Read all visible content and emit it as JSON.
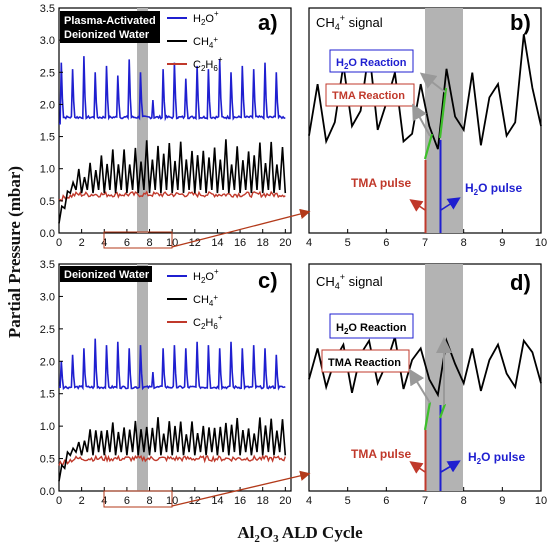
{
  "colors": {
    "h2o": "#1f1fd0",
    "ch4": "#000000",
    "c2h6": "#c0392b",
    "shade": "#b3b3b3",
    "green": "#3dbf2a",
    "grey_arrow": "#999999",
    "connector": "#b33a1a"
  },
  "xlabel": "Al₂O₃ ALD Cycle",
  "ylabel": "Partial Pressure (mbar)",
  "chart_data": [
    {
      "panel": "a)",
      "type": "line",
      "title": "Plasma-Activated Deionized Water",
      "x_range": [
        0,
        20.5
      ],
      "y_range": [
        0,
        3.5
      ],
      "x_ticks": [
        "0",
        "2",
        "4",
        "6",
        "8",
        "10",
        "12",
        "14",
        "16",
        "18",
        "20"
      ],
      "y_ticks": [
        "0.0",
        "0.5",
        "1.0",
        "1.5",
        "2.0",
        "2.5",
        "3.0",
        "3.5"
      ],
      "shaded_x": [
        7,
        8
      ],
      "legend": [
        {
          "label": "H₂O⁺",
          "main": "H",
          "sub": "2",
          "rest": "O",
          "sup": "+",
          "color": "#1f1fd0"
        },
        {
          "label": "CH₄⁺",
          "main": "CH",
          "sub": "4",
          "rest": "",
          "sup": "+",
          "color": "#000000"
        },
        {
          "label": "C₂H₆⁺",
          "main": "C",
          "sub": "2",
          "rest": "H",
          "sub2": "6",
          "sup": "+",
          "color": "#c0392b"
        }
      ],
      "series_model": {
        "h2o": {
          "base": 1.8,
          "peaks": [
            2.65,
            2.55,
            2.75,
            2.5,
            2.6,
            2.45,
            2.7,
            2.5,
            2.6,
            2.55,
            2.65,
            2.4,
            2.6,
            2.55,
            2.7,
            2.5,
            2.6,
            2.55,
            2.65,
            2.5
          ],
          "start": 1.7
        },
        "ch4": {
          "start": 0.15,
          "low": 0.62,
          "peak1": 1.15,
          "peak2": 1.35
        },
        "c2h6": {
          "level": 0.6
        }
      },
      "zoom_box_x": [
        4,
        10
      ]
    },
    {
      "panel": "b)",
      "type": "line",
      "title": "CH₄⁺ signal",
      "x_range": [
        4,
        10
      ],
      "x_ticks": [
        "4",
        "5",
        "6",
        "7",
        "8",
        "9",
        "10"
      ],
      "shaded_x": [
        7,
        8
      ],
      "values_ch4_norm": [
        0.45,
        0.72,
        0.42,
        0.52,
        0.82,
        0.5,
        0.58,
        0.9,
        0.48,
        0.62,
        0.78,
        0.42,
        0.46,
        0.72,
        0.5,
        0.38,
        0.8,
        0.55,
        0.48,
        0.78,
        0.4,
        0.65,
        0.72,
        0.45,
        0.52,
        0.98,
        0.7,
        0.5
      ],
      "annotations": [
        "H₂O Reaction",
        "TMA Reaction",
        "TMA pulse",
        "H₂O pulse"
      ]
    },
    {
      "panel": "c)",
      "type": "line",
      "title": "Deionized Water",
      "x_range": [
        0,
        20.5
      ],
      "y_range": [
        0,
        3.5
      ],
      "x_ticks": [
        "0",
        "2",
        "4",
        "6",
        "8",
        "10",
        "12",
        "14",
        "16",
        "18",
        "20"
      ],
      "y_ticks": [
        "0.0",
        "0.5",
        "1.0",
        "1.5",
        "2.0",
        "2.5",
        "3.0",
        "3.5"
      ],
      "shaded_x": [
        7,
        8
      ],
      "legend": [
        {
          "label": "H₂O⁺",
          "main": "H",
          "sub": "2",
          "rest": "O",
          "sup": "+",
          "color": "#1f1fd0"
        },
        {
          "label": "CH₄⁺",
          "main": "CH",
          "sub": "4",
          "rest": "",
          "sup": "+",
          "color": "#000000"
        },
        {
          "label": "C₂H₆⁺",
          "main": "C",
          "sub": "2",
          "rest": "H",
          "sub2": "6",
          "sup": "+",
          "color": "#c0392b"
        }
      ],
      "series_model": {
        "h2o": {
          "base": 1.6,
          "peaks": [
            2.0,
            2.1,
            2.2,
            2.35,
            2.25,
            2.3,
            2.2,
            2.25,
            2.3,
            2.2,
            2.25,
            2.2,
            2.3,
            2.25,
            2.2,
            2.3,
            2.2,
            2.25,
            2.2,
            2.1
          ],
          "start": 1.6
        },
        "ch4": {
          "start": 0.15,
          "low": 0.55,
          "peak1": 0.95,
          "peak2": 1.05
        },
        "c2h6": {
          "level": 0.5
        }
      },
      "zoom_box_x": [
        4,
        10
      ]
    },
    {
      "panel": "d)",
      "type": "line",
      "title": "CH₄⁺ signal",
      "x_range": [
        4,
        10
      ],
      "x_ticks": [
        "4",
        "5",
        "6",
        "7",
        "8",
        "9",
        "10"
      ],
      "shaded_x": [
        7,
        8
      ],
      "values_ch4_norm": [
        0.52,
        0.68,
        0.48,
        0.62,
        0.7,
        0.45,
        0.65,
        0.72,
        0.5,
        0.6,
        0.74,
        0.47,
        0.62,
        0.68,
        0.52,
        0.44,
        0.72,
        0.6,
        0.5,
        0.68,
        0.46,
        0.62,
        0.7,
        0.55,
        0.48,
        0.72,
        0.66,
        0.5
      ],
      "annotations": [
        "H₂O Reaction",
        "TMA Reaction",
        "TMA pulse",
        "H₂O pulse"
      ]
    }
  ]
}
